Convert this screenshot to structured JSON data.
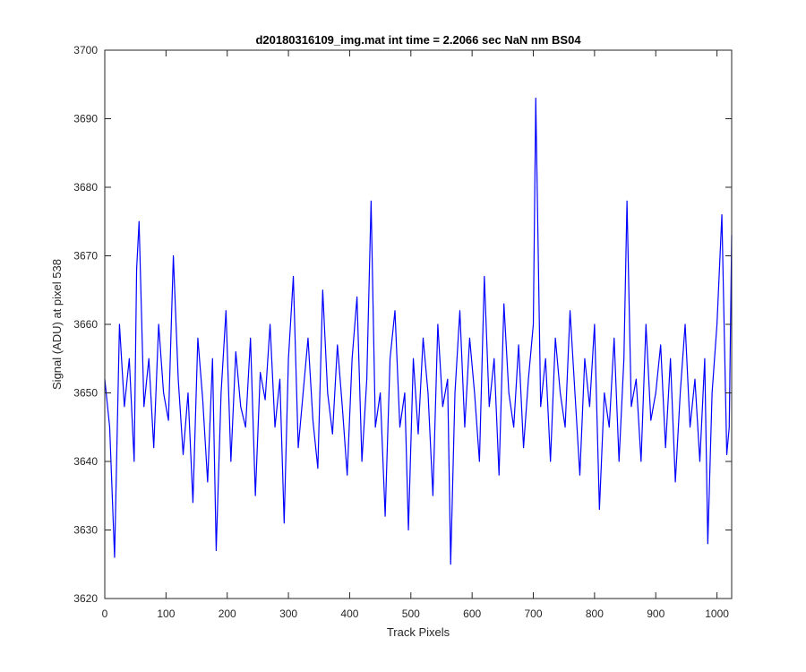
{
  "chart_data": {
    "type": "line",
    "title": "d20180316109_img.mat int time = 2.2066 sec  NaN nm BS04",
    "xlabel": "Track Pixels",
    "ylabel": "Signal (ADU) at pixel 538",
    "xlim": [
      0,
      1024
    ],
    "ylim": [
      3620,
      3700
    ],
    "xticks": [
      0,
      100,
      200,
      300,
      400,
      500,
      600,
      700,
      800,
      900,
      1000
    ],
    "yticks": [
      3620,
      3630,
      3640,
      3650,
      3660,
      3670,
      3680,
      3690,
      3700
    ],
    "grid": false,
    "legend": "none",
    "series": [
      {
        "color": "#0000ff",
        "x": [
          0,
          8,
          16,
          24,
          32,
          40,
          48,
          52,
          56,
          64,
          72,
          80,
          88,
          96,
          104,
          112,
          120,
          128,
          136,
          144,
          152,
          160,
          168,
          176,
          182,
          190,
          198,
          206,
          214,
          222,
          230,
          238,
          246,
          254,
          262,
          270,
          278,
          286,
          293,
          300,
          308,
          316,
          324,
          332,
          340,
          348,
          356,
          364,
          372,
          380,
          388,
          396,
          404,
          412,
          420,
          428,
          435,
          442,
          450,
          458,
          466,
          474,
          482,
          490,
          496,
          504,
          512,
          520,
          528,
          536,
          544,
          552,
          560,
          565,
          572,
          580,
          588,
          596,
          604,
          612,
          620,
          628,
          636,
          644,
          652,
          660,
          668,
          676,
          684,
          692,
          700,
          704,
          712,
          720,
          728,
          736,
          744,
          752,
          760,
          768,
          776,
          784,
          792,
          800,
          808,
          816,
          824,
          832,
          840,
          848,
          853,
          860,
          868,
          876,
          884,
          892,
          900,
          908,
          916,
          924,
          932,
          940,
          948,
          956,
          964,
          972,
          980,
          985,
          992,
          1000,
          1008,
          1016,
          1020,
          1024
        ],
        "y": [
          3652,
          3645,
          3626,
          3660,
          3648,
          3655,
          3640,
          3668,
          3675,
          3648,
          3655,
          3642,
          3660,
          3650,
          3646,
          3670,
          3652,
          3641,
          3650,
          3634,
          3658,
          3649,
          3637,
          3655,
          3627,
          3650,
          3662,
          3640,
          3656,
          3648,
          3645,
          3658,
          3635,
          3653,
          3649,
          3660,
          3645,
          3652,
          3631,
          3655,
          3667,
          3642,
          3650,
          3658,
          3646,
          3639,
          3665,
          3650,
          3644,
          3657,
          3648,
          3638,
          3655,
          3664,
          3640,
          3652,
          3678,
          3645,
          3650,
          3632,
          3655,
          3662,
          3645,
          3650,
          3630,
          3655,
          3644,
          3658,
          3650,
          3635,
          3660,
          3648,
          3652,
          3625,
          3650,
          3662,
          3645,
          3658,
          3650,
          3640,
          3667,
          3648,
          3655,
          3638,
          3663,
          3650,
          3645,
          3657,
          3642,
          3652,
          3660,
          3693,
          3648,
          3655,
          3640,
          3658,
          3650,
          3645,
          3662,
          3650,
          3638,
          3655,
          3648,
          3660,
          3633,
          3650,
          3645,
          3658,
          3640,
          3655,
          3678,
          3648,
          3652,
          3640,
          3660,
          3646,
          3650,
          3657,
          3642,
          3655,
          3637,
          3650,
          3660,
          3645,
          3652,
          3640,
          3655,
          3628,
          3650,
          3660,
          3676,
          3641,
          3645,
          3673
        ]
      }
    ]
  }
}
